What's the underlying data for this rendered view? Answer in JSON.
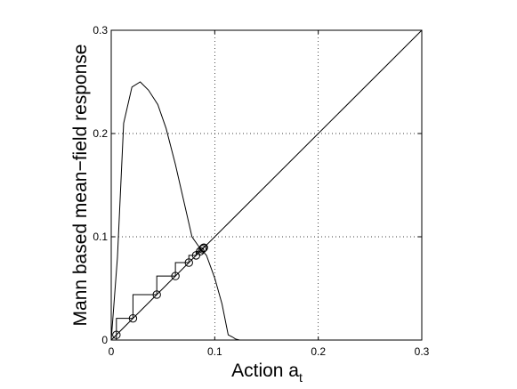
{
  "chart_data": {
    "type": "line",
    "title": "",
    "xlabel": "Action a",
    "xlabel_subscript": "t",
    "ylabel": "Mann based mean−field response",
    "xlim": [
      0,
      0.3
    ],
    "ylim": [
      0,
      0.3
    ],
    "xticks": [
      0,
      0.1,
      0.2,
      0.3
    ],
    "yticks": [
      0,
      0.1,
      0.2,
      0.3
    ],
    "xtick_labels": [
      "0",
      "0.1",
      "0.2",
      "0.3"
    ],
    "ytick_labels": [
      "0",
      "0.1",
      "0.2",
      "0.3"
    ],
    "grid": true,
    "legend": "none",
    "colors": {
      "line": "#000000",
      "grid": "#000000",
      "background": "#ffffff"
    },
    "series": [
      {
        "style": "solid",
        "x": [
          0.0,
          0.006,
          0.012,
          0.02,
          0.028,
          0.036,
          0.045,
          0.053,
          0.062,
          0.07,
          0.078,
          0.085,
          0.092,
          0.1,
          0.107,
          0.113,
          0.117,
          0.12,
          0.124
        ],
        "y": [
          0.0,
          0.08,
          0.21,
          0.245,
          0.25,
          0.242,
          0.228,
          0.205,
          0.17,
          0.135,
          0.1,
          0.09,
          0.082,
          0.06,
          0.035,
          0.005,
          0.003,
          0.001,
          0.0
        ]
      },
      {
        "style": "solid",
        "x": [
          0.0,
          0.3
        ],
        "y": [
          0.0,
          0.3
        ]
      },
      {
        "style": "staircase-markers",
        "marker": "circle",
        "x": [
          0.005,
          0.021,
          0.044,
          0.062,
          0.075,
          0.082,
          0.086,
          0.088,
          0.089,
          0.0895
        ],
        "y": [
          0.005,
          0.021,
          0.044,
          0.062,
          0.075,
          0.082,
          0.086,
          0.088,
          0.089,
          0.0895
        ]
      }
    ]
  }
}
